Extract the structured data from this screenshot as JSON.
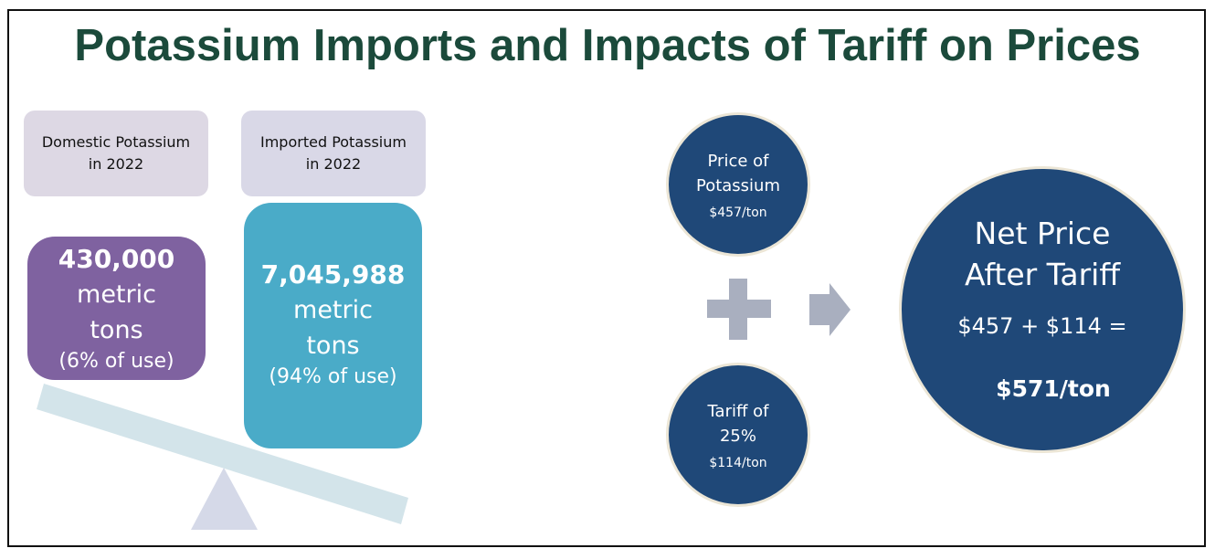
{
  "title": "Potassium Imports and Impacts of Tariff on Prices",
  "domestic": {
    "label_line1": "Domestic Potassium",
    "label_line2": "in 2022",
    "amount": "430,000",
    "unit_line1": "metric",
    "unit_line2": "tons",
    "share": "(6% of use)"
  },
  "imported": {
    "label_line1": "Imported Potassium",
    "label_line2": "in 2022",
    "amount": "7,045,988",
    "unit_line1": "metric",
    "unit_line2": "tons",
    "share": "(94% of use)"
  },
  "price": {
    "line1": "Price of",
    "line2": "Potassium",
    "value": "$457/ton"
  },
  "tariff": {
    "line1": "Tariff of",
    "line2": "25%",
    "value": "$114/ton"
  },
  "net": {
    "line1": "Net Price",
    "line2": "After Tariff",
    "equation": "$457 + $114 =",
    "result": "$571/ton"
  },
  "icons": {
    "plus": "plus-icon",
    "arrow": "arrow-right-icon",
    "seesaw": "seesaw-scale"
  },
  "colors": {
    "title": "#1b4a3b",
    "domestic": "#7f62a0",
    "imported": "#4aabc8",
    "circle": "#1f4878",
    "label_bg": "#dcd8e6"
  }
}
